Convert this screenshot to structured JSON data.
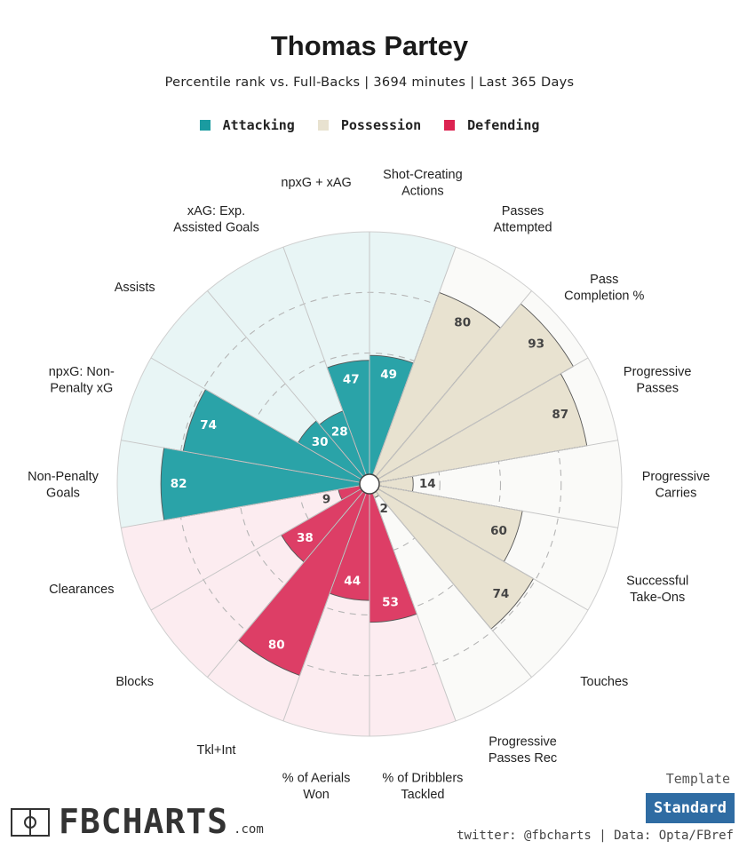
{
  "header": {
    "title": "Thomas Partey",
    "subtitle": "Percentile rank vs. Full-Backs | 3694 minutes | Last 365 Days"
  },
  "legend": [
    {
      "label": "Attacking",
      "color": "#1a9ba0"
    },
    {
      "label": "Possession",
      "color": "#e8e2d0"
    },
    {
      "label": "Defending",
      "color": "#dc2351"
    }
  ],
  "chart_data": {
    "type": "polar-bar",
    "title": "Thomas Partey",
    "scale_max": 100,
    "gridlines": [
      25,
      50,
      75
    ],
    "categories": [
      {
        "label": "Shot-Creating\nActions",
        "value": 49,
        "group": "Attacking"
      },
      {
        "label": "Passes\nAttempted",
        "value": 80,
        "group": "Possession"
      },
      {
        "label": "Pass\nCompletion %",
        "value": 93,
        "group": "Possession"
      },
      {
        "label": "Progressive\nPasses",
        "value": 87,
        "group": "Possession"
      },
      {
        "label": "Progressive\nCarries",
        "value": 14,
        "group": "Possession"
      },
      {
        "label": "Successful\nTake-Ons",
        "value": 60,
        "group": "Possession"
      },
      {
        "label": "Touches",
        "value": 74,
        "group": "Possession"
      },
      {
        "label": "Progressive\nPasses Rec",
        "value": 2,
        "group": "Possession"
      },
      {
        "label": "% of Dribblers\nTackled",
        "value": 53,
        "group": "Defending"
      },
      {
        "label": "% of Aerials\nWon",
        "value": 44,
        "group": "Defending"
      },
      {
        "label": "Tkl+Int",
        "value": 80,
        "group": "Defending"
      },
      {
        "label": "Blocks",
        "value": 38,
        "group": "Defending"
      },
      {
        "label": "Clearances",
        "value": 9,
        "group": "Defending"
      },
      {
        "label": "Non-Penalty\nGoals",
        "value": 82,
        "group": "Attacking"
      },
      {
        "label": "npxG: Non-\nPenalty xG",
        "value": 74,
        "group": "Attacking"
      },
      {
        "label": "Assists",
        "value": 30,
        "group": "Attacking"
      },
      {
        "label": "xAG: Exp.\nAssisted Goals",
        "value": 28,
        "group": "Attacking"
      },
      {
        "label": "npxG + xAG",
        "value": 47,
        "group": "Attacking"
      }
    ]
  },
  "colors": {
    "Attacking": {
      "fill": "#2aa3a8",
      "bg": "#e8f5f5",
      "text": "#ffffff"
    },
    "Possession": {
      "fill": "#e8e2d0",
      "bg": "#fafaf8",
      "text": "#444444"
    },
    "Defending": {
      "fill": "#dd3e66",
      "bg": "#fcecf0",
      "text": "#ffffff"
    },
    "low_text": "#444444",
    "grid": "#bdbdbd"
  },
  "template": {
    "label": "Template",
    "button": "Standard"
  },
  "footer": {
    "credit": "twitter: @fbcharts | Data: Opta/FBref"
  },
  "logo": {
    "text": "FBCHARTS",
    "suffix": ".com"
  }
}
